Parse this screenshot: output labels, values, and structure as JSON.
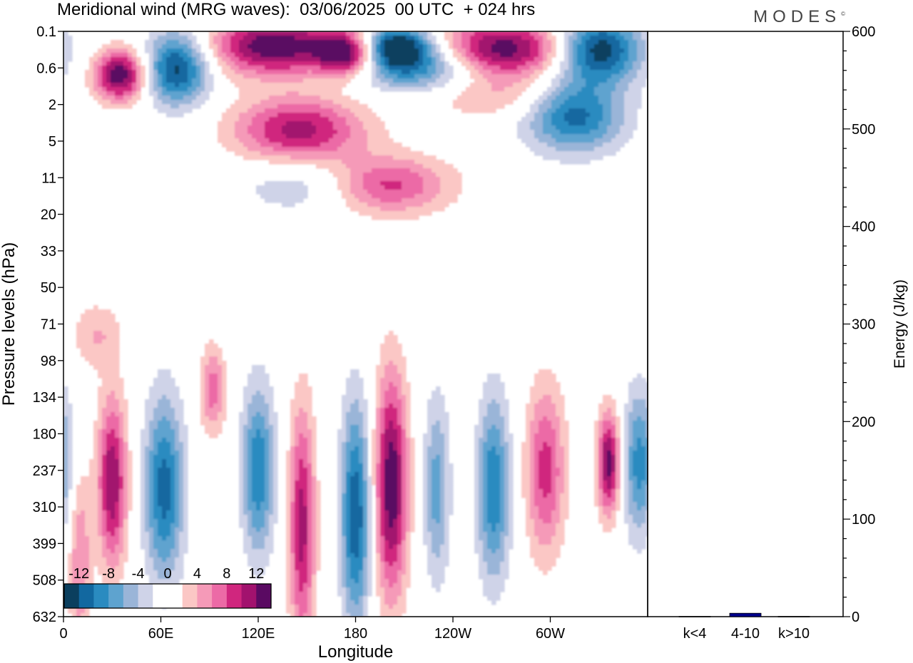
{
  "title": "Meridional wind (MRG waves):  03/06/2025  00 UTC  + 024 hrs",
  "logo": "MODES",
  "logo_mark": "©",
  "chart_data": [
    {
      "type": "heatmap",
      "name": "meridional-wind-contours",
      "xlabel": "Longitude",
      "ylabel": "Pressure levels (hPa)",
      "x_ticks": [
        "0",
        "60E",
        "120E",
        "180",
        "120W",
        "60W"
      ],
      "x_tick_longitudes": [
        0,
        60,
        120,
        180,
        240,
        300
      ],
      "x_range": [
        0,
        360
      ],
      "y_ticks": [
        "0.1",
        "0.6",
        "2",
        "5",
        "11",
        "20",
        "33",
        "50",
        "71",
        "98",
        "134",
        "180",
        "237",
        "310",
        "399",
        "508",
        "632"
      ],
      "colorbar": {
        "labels": [
          "-12",
          "-8",
          "-4",
          "0",
          "4",
          "8",
          "12"
        ],
        "levels": [
          -14,
          -12,
          -10,
          -8,
          -6,
          -4,
          -2,
          0,
          2,
          4,
          6,
          8,
          10,
          12,
          14
        ],
        "colors": [
          "#0b3f5e",
          "#1268a0",
          "#2a8bc0",
          "#5ea3cf",
          "#9ab5d8",
          "#cfd3e8",
          "#ffffff",
          "#ffffff",
          "#fbc7c5",
          "#f59ab8",
          "#ec6aa6",
          "#d0267e",
          "#a2126e",
          "#5a0a62"
        ],
        "placement": "bottom-left"
      },
      "features": [
        {
          "lon": 35,
          "level": 1.2,
          "value": 14,
          "w": 16,
          "h": 0.7
        },
        {
          "lon": 70,
          "level": 1.0,
          "value": -13,
          "w": 20,
          "h": 1.0
        },
        {
          "lon": 130,
          "level": 0.4,
          "value": 14,
          "w": 40,
          "h": 0.8
        },
        {
          "lon": 175,
          "level": 0.6,
          "value": 14,
          "w": 18,
          "h": 0.6
        },
        {
          "lon": 205,
          "level": 0.4,
          "value": -14,
          "w": 22,
          "h": 0.6
        },
        {
          "lon": 270,
          "level": 0.5,
          "value": 14,
          "w": 40,
          "h": 0.8
        },
        {
          "lon": 330,
          "level": 0.5,
          "value": -14,
          "w": 26,
          "h": 0.9
        },
        {
          "lon": 220,
          "level": 1.0,
          "value": -9,
          "w": 40,
          "h": 0.7
        },
        {
          "lon": 315,
          "level": 2.3,
          "value": -11,
          "w": 30,
          "h": 1.0
        },
        {
          "lon": 145,
          "level": 2.7,
          "value": 11,
          "w": 40,
          "h": 0.9
        },
        {
          "lon": 195,
          "level": 4.2,
          "value": 11,
          "w": 40,
          "h": 0.8
        },
        {
          "lon": 160,
          "level": 4.2,
          "value": -6,
          "w": 45,
          "h": 0.8
        },
        {
          "lon": 265,
          "level": 1.8,
          "value": 4,
          "w": 45,
          "h": 0.6
        },
        {
          "lon": 20,
          "level": 8.3,
          "value": 4,
          "w": 15,
          "h": 0.9
        },
        {
          "lon": 30,
          "level": 12.3,
          "value": 12,
          "w": 9,
          "h": 2.3
        },
        {
          "lon": 62,
          "level": 12.5,
          "value": -11,
          "w": 12,
          "h": 2.5
        },
        {
          "lon": 92,
          "level": 9.8,
          "value": 7,
          "w": 8,
          "h": 1.2
        },
        {
          "lon": 120,
          "level": 12.0,
          "value": -10,
          "w": 10,
          "h": 2.3
        },
        {
          "lon": 147,
          "level": 13.5,
          "value": 11,
          "w": 8,
          "h": 3.2
        },
        {
          "lon": 180,
          "level": 13.2,
          "value": -12,
          "w": 9,
          "h": 3.0
        },
        {
          "lon": 202,
          "level": 12.4,
          "value": 14,
          "w": 10,
          "h": 3.0
        },
        {
          "lon": 230,
          "level": 12.5,
          "value": -7,
          "w": 8,
          "h": 2.5
        },
        {
          "lon": 265,
          "level": 12.5,
          "value": -10,
          "w": 10,
          "h": 2.5
        },
        {
          "lon": 297,
          "level": 12.0,
          "value": 9,
          "w": 12,
          "h": 2.3
        },
        {
          "lon": 336,
          "level": 11.8,
          "value": 13,
          "w": 7,
          "h": 1.4
        },
        {
          "lon": 355,
          "level": 11.8,
          "value": -9,
          "w": 10,
          "h": 2.0
        },
        {
          "lon": 10,
          "level": 14.5,
          "value": 6,
          "w": 7,
          "h": 2.5
        }
      ]
    },
    {
      "type": "bar",
      "name": "energy-by-wavenumber",
      "categories": [
        "k<4",
        "4-10",
        "k>10"
      ],
      "values": [
        0.3,
        3.5,
        0.3
      ],
      "ylabel": "Energy (J/kg)",
      "ylim": [
        0,
        600
      ],
      "y_ticks": [
        0,
        100,
        200,
        300,
        400,
        500,
        600
      ],
      "bar_colors": [
        "#00008b",
        "#00008b",
        "#00008b"
      ]
    }
  ]
}
